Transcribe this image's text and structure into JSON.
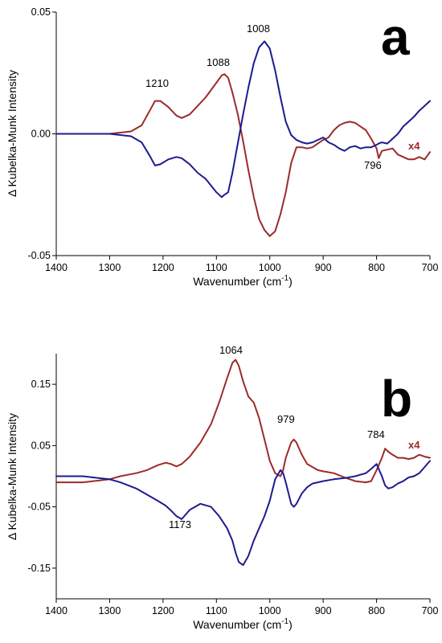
{
  "chart_data": [
    {
      "type": "line",
      "panel_label": "a",
      "xlabel": "Wavenumber (cm-1)",
      "xlabel_main": "Wavenumber (cm",
      "xlabel_sup": "-1",
      "xlabel_close": ")",
      "ylabel": "Δ Kubelka-Munk Intensity",
      "xlim": [
        1400,
        700
      ],
      "ylim": [
        -0.05,
        0.05
      ],
      "x_ticks": [
        "1400",
        "1300",
        "1200",
        "1100",
        "1000",
        "900",
        "800",
        "700"
      ],
      "y_ticks": [
        "-0.05",
        "0.00",
        "0.05"
      ],
      "scale_note": "x4",
      "colors": {
        "red": "#9b2b2b",
        "blue": "#1c1c8f"
      },
      "annotations": [
        "1210",
        "1088",
        "1008",
        "796"
      ],
      "series": [
        {
          "color": "red",
          "x": [
            1400,
            1300,
            1280,
            1260,
            1240,
            1225,
            1215,
            1205,
            1190,
            1175,
            1165,
            1150,
            1135,
            1120,
            1100,
            1090,
            1085,
            1078,
            1070,
            1060,
            1050,
            1040,
            1030,
            1020,
            1010,
            1000,
            990,
            980,
            970,
            960,
            950,
            940,
            930,
            920,
            910,
            900,
            890,
            880,
            870,
            860,
            850,
            840,
            830,
            820,
            810,
            800,
            796,
            790,
            780,
            770,
            760,
            750,
            740,
            730,
            720,
            710,
            700
          ],
          "y": [
            0.0,
            0.0,
            0.0005,
            0.001,
            0.0035,
            0.0095,
            0.0135,
            0.0135,
            0.011,
            0.0075,
            0.0065,
            0.008,
            0.0115,
            0.015,
            0.021,
            0.024,
            0.0245,
            0.023,
            0.017,
            0.008,
            -0.003,
            -0.015,
            -0.026,
            -0.035,
            -0.0395,
            -0.042,
            -0.04,
            -0.033,
            -0.024,
            -0.012,
            -0.0055,
            -0.0055,
            -0.006,
            -0.0055,
            -0.004,
            -0.0025,
            -0.0015,
            0.0015,
            0.0035,
            0.0045,
            0.005,
            0.0045,
            0.003,
            0.0015,
            -0.002,
            -0.006,
            -0.01,
            -0.007,
            -0.0065,
            -0.006,
            -0.0085,
            -0.0095,
            -0.0105,
            -0.0105,
            -0.0095,
            -0.0105,
            -0.0075
          ]
        },
        {
          "color": "blue",
          "x": [
            1400,
            1300,
            1280,
            1260,
            1240,
            1225,
            1215,
            1205,
            1190,
            1175,
            1165,
            1150,
            1135,
            1120,
            1100,
            1090,
            1085,
            1078,
            1070,
            1060,
            1050,
            1040,
            1030,
            1020,
            1010,
            1000,
            990,
            980,
            970,
            960,
            950,
            940,
            930,
            920,
            910,
            900,
            890,
            880,
            870,
            860,
            850,
            840,
            830,
            820,
            810,
            800,
            796,
            790,
            780,
            770,
            760,
            750,
            740,
            730,
            720,
            710,
            700
          ],
          "y": [
            0.0,
            0.0,
            -0.0005,
            -0.001,
            -0.0035,
            -0.009,
            -0.013,
            -0.0125,
            -0.0105,
            -0.0095,
            -0.01,
            -0.0125,
            -0.016,
            -0.0185,
            -0.024,
            -0.026,
            -0.025,
            -0.024,
            -0.016,
            -0.004,
            0.008,
            0.019,
            0.029,
            0.0355,
            0.038,
            0.035,
            0.026,
            0.015,
            0.005,
            -0.0005,
            -0.0025,
            -0.0035,
            -0.004,
            -0.0035,
            -0.0025,
            -0.0015,
            -0.0035,
            -0.0045,
            -0.006,
            -0.007,
            -0.0055,
            -0.005,
            -0.006,
            -0.0055,
            -0.0055,
            -0.0045,
            -0.004,
            -0.0035,
            -0.004,
            -0.002,
            0.0,
            0.003,
            0.005,
            0.007,
            0.0095,
            0.0115,
            0.0135
          ]
        }
      ]
    },
    {
      "type": "line",
      "panel_label": "b",
      "xlabel": "Wavenumber (cm-1)",
      "xlabel_main": "Wavenumber (cm",
      "xlabel_sup": "-1",
      "xlabel_close": ")",
      "ylabel": "Δ Kubelka-Munk Intensity",
      "xlim": [
        1400,
        700
      ],
      "ylim": [
        -0.2,
        0.2
      ],
      "x_ticks": [
        "1400",
        "1300",
        "1200",
        "1100",
        "1000",
        "900",
        "800",
        "700"
      ],
      "y_ticks": [
        "-0.15",
        "-0.05",
        "0.05",
        "0.15"
      ],
      "y_tick_values": [
        -0.15,
        -0.05,
        0.05,
        0.15
      ],
      "scale_note": "x4",
      "colors": {
        "red": "#9b2b2b",
        "blue": "#1c1c8f"
      },
      "annotations": [
        "1064",
        "979",
        "784",
        "1173"
      ],
      "series": [
        {
          "color": "red",
          "x": [
            1400,
            1350,
            1300,
            1280,
            1250,
            1230,
            1210,
            1195,
            1185,
            1175,
            1165,
            1150,
            1130,
            1110,
            1095,
            1080,
            1070,
            1064,
            1058,
            1050,
            1040,
            1030,
            1020,
            1010,
            1000,
            990,
            980,
            975,
            970,
            960,
            955,
            950,
            940,
            930,
            920,
            910,
            900,
            880,
            860,
            840,
            820,
            810,
            800,
            790,
            784,
            778,
            770,
            760,
            750,
            740,
            730,
            720,
            710,
            700
          ],
          "y": [
            -0.01,
            -0.01,
            -0.005,
            0.0,
            0.005,
            0.01,
            0.018,
            0.022,
            0.02,
            0.016,
            0.02,
            0.032,
            0.055,
            0.085,
            0.12,
            0.16,
            0.185,
            0.19,
            0.18,
            0.155,
            0.13,
            0.12,
            0.095,
            0.06,
            0.025,
            0.005,
            0.0,
            0.01,
            0.03,
            0.055,
            0.06,
            0.055,
            0.035,
            0.02,
            0.015,
            0.01,
            0.008,
            0.005,
            -0.002,
            -0.008,
            -0.01,
            -0.008,
            0.01,
            0.03,
            0.045,
            0.04,
            0.035,
            0.03,
            0.03,
            0.028,
            0.03,
            0.035,
            0.032,
            0.03
          ]
        },
        {
          "color": "blue",
          "x": [
            1400,
            1350,
            1300,
            1280,
            1250,
            1230,
            1210,
            1195,
            1185,
            1175,
            1165,
            1150,
            1130,
            1110,
            1095,
            1080,
            1070,
            1064,
            1058,
            1050,
            1040,
            1030,
            1020,
            1010,
            1000,
            990,
            980,
            975,
            970,
            960,
            955,
            950,
            940,
            930,
            920,
            910,
            900,
            880,
            860,
            840,
            820,
            810,
            800,
            790,
            784,
            778,
            770,
            760,
            750,
            740,
            730,
            720,
            710,
            700
          ],
          "y": [
            0.0,
            0.0,
            -0.005,
            -0.01,
            -0.02,
            -0.03,
            -0.04,
            -0.048,
            -0.056,
            -0.065,
            -0.07,
            -0.055,
            -0.045,
            -0.05,
            -0.065,
            -0.085,
            -0.105,
            -0.125,
            -0.14,
            -0.145,
            -0.13,
            -0.105,
            -0.085,
            -0.065,
            -0.04,
            -0.005,
            0.01,
            0.005,
            -0.01,
            -0.045,
            -0.05,
            -0.045,
            -0.028,
            -0.018,
            -0.012,
            -0.01,
            -0.008,
            -0.005,
            -0.003,
            0.0,
            0.005,
            0.012,
            0.02,
            0.0,
            -0.015,
            -0.02,
            -0.018,
            -0.012,
            -0.008,
            -0.002,
            0.0,
            0.005,
            0.015,
            0.025
          ]
        }
      ]
    }
  ]
}
